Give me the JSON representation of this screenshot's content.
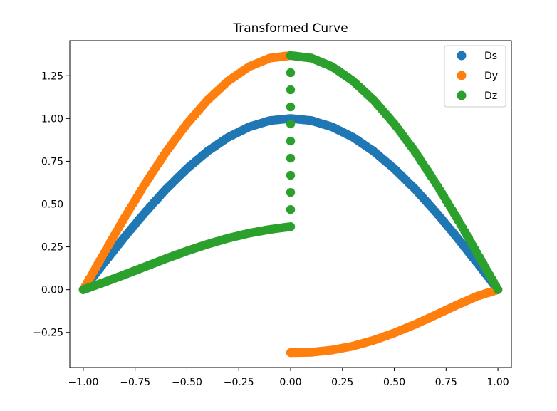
{
  "chart_data": {
    "type": "scatter",
    "title": "Transformed Curve",
    "xlabel": "",
    "ylabel": "",
    "xlim": [
      -1.065,
      1.065
    ],
    "ylim": [
      -0.455,
      1.455
    ],
    "xticks": [
      -1.0,
      -0.75,
      -0.5,
      -0.25,
      0.0,
      0.25,
      0.5,
      0.75,
      1.0
    ],
    "xtick_labels": [
      "−1.00",
      "−0.75",
      "−0.50",
      "−0.25",
      "0.00",
      "0.25",
      "0.50",
      "0.75",
      "1.00"
    ],
    "yticks": [
      -0.25,
      0.0,
      0.25,
      0.5,
      0.75,
      1.0,
      1.25
    ],
    "ytick_labels": [
      "−0.25",
      "0.00",
      "0.25",
      "0.50",
      "0.75",
      "1.00",
      "1.25"
    ],
    "grid": false,
    "legend": {
      "position": "top-right",
      "entries": [
        "Ds",
        "Dy",
        "Dz"
      ]
    },
    "series": [
      {
        "name": "Ds",
        "color": "#1f77b4",
        "x": [
          -1.0,
          -0.9,
          -0.8,
          -0.7,
          -0.6,
          -0.5,
          -0.4,
          -0.3,
          -0.2,
          -0.1,
          0.0,
          0.1,
          0.2,
          0.3,
          0.4,
          0.5,
          0.6,
          0.7,
          0.8,
          0.9,
          1.0
        ],
        "y": [
          0.0,
          0.156,
          0.309,
          0.454,
          0.588,
          0.707,
          0.809,
          0.891,
          0.951,
          0.988,
          1.0,
          0.988,
          0.951,
          0.891,
          0.809,
          0.707,
          0.588,
          0.454,
          0.309,
          0.156,
          0.0
        ]
      },
      {
        "name": "Dy",
        "color": "#ff7f0e",
        "x": [
          -1.0,
          -0.9,
          -0.8,
          -0.7,
          -0.6,
          -0.5,
          -0.4,
          -0.3,
          -0.2,
          -0.1,
          0.0,
          0.0,
          0.1,
          0.2,
          0.3,
          0.4,
          0.5,
          0.6,
          0.7,
          0.8,
          0.9,
          1.0
        ],
        "y": [
          0.0,
          0.213,
          0.423,
          0.622,
          0.806,
          0.969,
          1.108,
          1.22,
          1.303,
          1.353,
          1.368,
          -0.368,
          -0.366,
          -0.353,
          -0.33,
          -0.296,
          -0.253,
          -0.203,
          -0.148,
          -0.091,
          -0.038,
          0.0
        ]
      },
      {
        "name": "Dz",
        "color": "#2ca02c",
        "x": [
          -1.0,
          -0.9,
          -0.8,
          -0.7,
          -0.6,
          -0.5,
          -0.4,
          -0.3,
          -0.2,
          -0.1,
          0.0,
          0.0,
          0.1,
          0.2,
          0.3,
          0.4,
          0.5,
          0.6,
          0.7,
          0.8,
          0.9,
          1.0
        ],
        "y": [
          0.0,
          0.043,
          0.088,
          0.135,
          0.182,
          0.226,
          0.266,
          0.301,
          0.33,
          0.352,
          0.368,
          1.368,
          1.353,
          1.303,
          1.22,
          1.108,
          0.969,
          0.806,
          0.622,
          0.423,
          0.213,
          0.0
        ]
      }
    ]
  }
}
